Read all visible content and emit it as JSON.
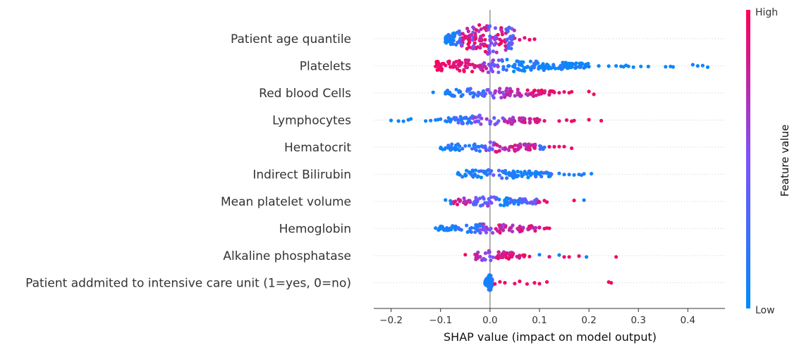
{
  "chart_data": {
    "type": "scatter",
    "subtype": "shap-beeswarm",
    "title": "",
    "xlabel": "SHAP value (impact on model output)",
    "ylabel": "",
    "xlim": [
      -0.235,
      0.475
    ],
    "xticks": [
      -0.2,
      -0.1,
      0.0,
      0.1,
      0.2,
      0.3,
      0.4
    ],
    "xtick_labels": [
      "−0.2",
      "−0.1",
      "0.0",
      "0.1",
      "0.2",
      "0.3",
      "0.4"
    ],
    "grid": false,
    "colorbar": {
      "title": "Feature value",
      "high_label": "High",
      "low_label": "Low",
      "low_color": "#008bfb",
      "mid_color": "#7c52ff",
      "high_color": "#ff0052"
    },
    "features": [
      {
        "label": "Patient age quantile",
        "bulk": {
          "from": -0.09,
          "to": 0.05,
          "density": 2.2
        },
        "points": [
          [
            -0.09,
            0.05
          ],
          [
            -0.085,
            0.1
          ],
          [
            -0.08,
            0.05
          ],
          [
            -0.075,
            0.1
          ],
          [
            -0.06,
            0.25
          ],
          [
            -0.055,
            0.8
          ],
          [
            -0.05,
            0.9
          ],
          [
            -0.04,
            0.85
          ],
          [
            -0.035,
            0.5
          ],
          [
            -0.03,
            0.9
          ],
          [
            -0.02,
            0.8
          ],
          [
            -0.01,
            0.9
          ],
          [
            0.0,
            0.5
          ],
          [
            0.01,
            0.6
          ],
          [
            0.02,
            0.9
          ],
          [
            0.03,
            0.8
          ],
          [
            0.035,
            0.3
          ],
          [
            0.04,
            0.35
          ],
          [
            0.045,
            0.4
          ],
          [
            0.05,
            0.75
          ],
          [
            0.06,
            0.85
          ],
          [
            0.07,
            0.9
          ],
          [
            0.08,
            0.95
          ],
          [
            0.09,
            0.95
          ]
        ],
        "spread": 1.0
      },
      {
        "label": "Platelets",
        "bulk": {
          "from": -0.11,
          "to": 0.2,
          "density": 1.3
        },
        "points": [
          [
            -0.11,
            0.95
          ],
          [
            -0.1,
            0.95
          ],
          [
            -0.09,
            0.95
          ],
          [
            -0.08,
            0.95
          ],
          [
            -0.07,
            0.9
          ],
          [
            -0.06,
            0.9
          ],
          [
            -0.05,
            0.9
          ],
          [
            -0.04,
            0.85
          ],
          [
            -0.03,
            0.85
          ],
          [
            -0.02,
            0.8
          ],
          [
            -0.01,
            0.75
          ],
          [
            0.0,
            0.5
          ],
          [
            0.05,
            0.1
          ],
          [
            0.1,
            0.1
          ],
          [
            0.15,
            0.05
          ],
          [
            0.2,
            0.05
          ],
          [
            0.22,
            0.05
          ],
          [
            0.24,
            0.05
          ],
          [
            0.255,
            0.05
          ],
          [
            0.265,
            0.05
          ],
          [
            0.27,
            0.05
          ],
          [
            0.275,
            0.05
          ],
          [
            0.28,
            0.05
          ],
          [
            0.29,
            0.05
          ],
          [
            0.305,
            0.05
          ],
          [
            0.32,
            0.05
          ],
          [
            0.355,
            0.05
          ],
          [
            0.365,
            0.05
          ],
          [
            0.37,
            0.05
          ],
          [
            0.41,
            0.05
          ],
          [
            0.42,
            0.05
          ],
          [
            0.43,
            0.05
          ],
          [
            0.44,
            0.05
          ]
        ],
        "spread": 0.45
      },
      {
        "label": "Red blood Cells",
        "bulk": {
          "from": -0.09,
          "to": 0.13,
          "density": 0.9
        },
        "points": [
          [
            -0.115,
            0.05
          ],
          [
            -0.09,
            0.1
          ],
          [
            -0.08,
            0.1
          ],
          [
            -0.06,
            0.15
          ],
          [
            -0.04,
            0.2
          ],
          [
            -0.02,
            0.3
          ],
          [
            0.0,
            0.5
          ],
          [
            0.02,
            0.7
          ],
          [
            0.04,
            0.75
          ],
          [
            0.06,
            0.8
          ],
          [
            0.08,
            0.8
          ],
          [
            0.1,
            0.85
          ],
          [
            0.12,
            0.85
          ],
          [
            0.13,
            0.9
          ],
          [
            0.14,
            0.9
          ],
          [
            0.15,
            0.9
          ],
          [
            0.16,
            0.95
          ],
          [
            0.165,
            0.95
          ],
          [
            0.2,
            0.95
          ],
          [
            0.21,
            0.95
          ]
        ],
        "spread": 0.4
      },
      {
        "label": "Lymphocytes",
        "bulk": {
          "from": -0.09,
          "to": 0.1,
          "density": 0.9
        },
        "points": [
          [
            -0.2,
            0.05
          ],
          [
            -0.185,
            0.05
          ],
          [
            -0.175,
            0.05
          ],
          [
            -0.165,
            0.05
          ],
          [
            -0.16,
            0.05
          ],
          [
            -0.13,
            0.05
          ],
          [
            -0.12,
            0.1
          ],
          [
            -0.11,
            0.1
          ],
          [
            -0.105,
            0.1
          ],
          [
            -0.1,
            0.1
          ],
          [
            -0.09,
            0.15
          ],
          [
            -0.07,
            0.2
          ],
          [
            0.0,
            0.5
          ],
          [
            0.04,
            0.7
          ],
          [
            0.06,
            0.75
          ],
          [
            0.08,
            0.8
          ],
          [
            0.09,
            0.85
          ],
          [
            0.1,
            0.85
          ],
          [
            0.11,
            0.9
          ],
          [
            0.14,
            0.95
          ],
          [
            0.155,
            0.9
          ],
          [
            0.165,
            0.95
          ],
          [
            0.17,
            0.95
          ],
          [
            0.2,
            0.95
          ],
          [
            0.225,
            0.95
          ]
        ],
        "spread": 0.4
      },
      {
        "label": "Hematocrit",
        "bulk": {
          "from": -0.1,
          "to": 0.11,
          "density": 0.9
        },
        "points": [
          [
            -0.1,
            0.05
          ],
          [
            -0.09,
            0.1
          ],
          [
            -0.08,
            0.1
          ],
          [
            -0.07,
            0.1
          ],
          [
            -0.05,
            0.15
          ],
          [
            -0.03,
            0.2
          ],
          [
            0.0,
            0.5
          ],
          [
            0.02,
            0.75
          ],
          [
            0.04,
            0.8
          ],
          [
            0.06,
            0.8
          ],
          [
            0.08,
            0.85
          ],
          [
            0.09,
            0.85
          ],
          [
            0.11,
            0.2
          ],
          [
            0.12,
            0.9
          ],
          [
            0.13,
            0.95
          ],
          [
            0.14,
            0.9
          ],
          [
            0.15,
            0.95
          ],
          [
            0.165,
            0.95
          ]
        ],
        "spread": 0.4
      },
      {
        "label": "Indirect Bilirubin",
        "bulk": {
          "from": -0.065,
          "to": 0.13,
          "density": 0.9
        },
        "points": [
          [
            -0.065,
            0.05
          ],
          [
            -0.05,
            0.05
          ],
          [
            -0.03,
            0.1
          ],
          [
            -0.01,
            0.1
          ],
          [
            0.0,
            0.3
          ],
          [
            0.05,
            0.1
          ],
          [
            0.08,
            0.1
          ],
          [
            0.1,
            0.1
          ],
          [
            0.12,
            0.1
          ],
          [
            0.14,
            0.1
          ],
          [
            0.15,
            0.1
          ],
          [
            0.16,
            0.1
          ],
          [
            0.17,
            0.1
          ],
          [
            0.18,
            0.1
          ],
          [
            0.185,
            0.1
          ],
          [
            0.19,
            0.1
          ],
          [
            0.205,
            0.1
          ]
        ],
        "spread": 0.35
      },
      {
        "label": "Mean platelet volume ",
        "bulk": {
          "from": -0.08,
          "to": 0.1,
          "density": 0.9
        },
        "points": [
          [
            -0.09,
            0.05
          ],
          [
            -0.08,
            0.1
          ],
          [
            -0.07,
            0.85
          ],
          [
            -0.06,
            0.8
          ],
          [
            -0.05,
            0.7
          ],
          [
            -0.03,
            0.4
          ],
          [
            -0.01,
            0.3
          ],
          [
            0.0,
            0.5
          ],
          [
            0.03,
            0.1
          ],
          [
            0.05,
            0.2
          ],
          [
            0.07,
            0.3
          ],
          [
            0.09,
            0.4
          ],
          [
            0.1,
            0.85
          ],
          [
            0.11,
            0.9
          ],
          [
            0.115,
            0.95
          ],
          [
            0.17,
            0.95
          ],
          [
            0.19,
            0.05
          ]
        ],
        "spread": 0.35
      },
      {
        "label": "Hemoglobin",
        "bulk": {
          "from": -0.105,
          "to": 0.1,
          "density": 0.9
        },
        "points": [
          [
            -0.11,
            0.05
          ],
          [
            -0.1,
            0.1
          ],
          [
            -0.09,
            0.1
          ],
          [
            -0.08,
            0.1
          ],
          [
            -0.06,
            0.15
          ],
          [
            -0.04,
            0.2
          ],
          [
            0.0,
            0.5
          ],
          [
            0.02,
            0.75
          ],
          [
            0.04,
            0.8
          ],
          [
            0.06,
            0.8
          ],
          [
            0.08,
            0.85
          ],
          [
            0.1,
            0.85
          ],
          [
            0.11,
            0.9
          ],
          [
            0.115,
            0.95
          ],
          [
            0.12,
            0.95
          ]
        ],
        "spread": 0.35
      },
      {
        "label": "Alkaline phosphatase",
        "bulk": {
          "from": -0.03,
          "to": 0.07,
          "density": 1.0
        },
        "points": [
          [
            -0.05,
            0.95
          ],
          [
            -0.03,
            0.8
          ],
          [
            -0.02,
            0.7
          ],
          [
            0.0,
            0.5
          ],
          [
            0.02,
            0.85
          ],
          [
            0.04,
            0.9
          ],
          [
            0.06,
            0.9
          ],
          [
            0.07,
            0.95
          ],
          [
            0.08,
            0.95
          ],
          [
            0.1,
            0.05
          ],
          [
            0.12,
            0.9
          ],
          [
            0.14,
            0.05
          ],
          [
            0.15,
            0.95
          ],
          [
            0.16,
            0.9
          ],
          [
            0.18,
            0.95
          ],
          [
            0.195,
            0.05
          ],
          [
            0.255,
            0.95
          ]
        ],
        "spread": 0.35
      },
      {
        "label": "Patient addmited to intensive care unit (1=yes, 0=no)",
        "bulk": {
          "from": -0.01,
          "to": 0.005,
          "density": 3.0
        },
        "points": [
          [
            -0.01,
            0.05
          ],
          [
            -0.005,
            0.1
          ],
          [
            0.0,
            0.05
          ],
          [
            0.01,
            0.95
          ],
          [
            0.02,
            0.95
          ],
          [
            0.03,
            0.95
          ],
          [
            0.05,
            0.95
          ],
          [
            0.06,
            0.95
          ],
          [
            0.075,
            0.95
          ],
          [
            0.09,
            0.95
          ],
          [
            0.1,
            0.95
          ],
          [
            0.115,
            0.95
          ],
          [
            0.24,
            0.95
          ],
          [
            0.245,
            0.95
          ]
        ],
        "spread": 0.2
      }
    ]
  }
}
